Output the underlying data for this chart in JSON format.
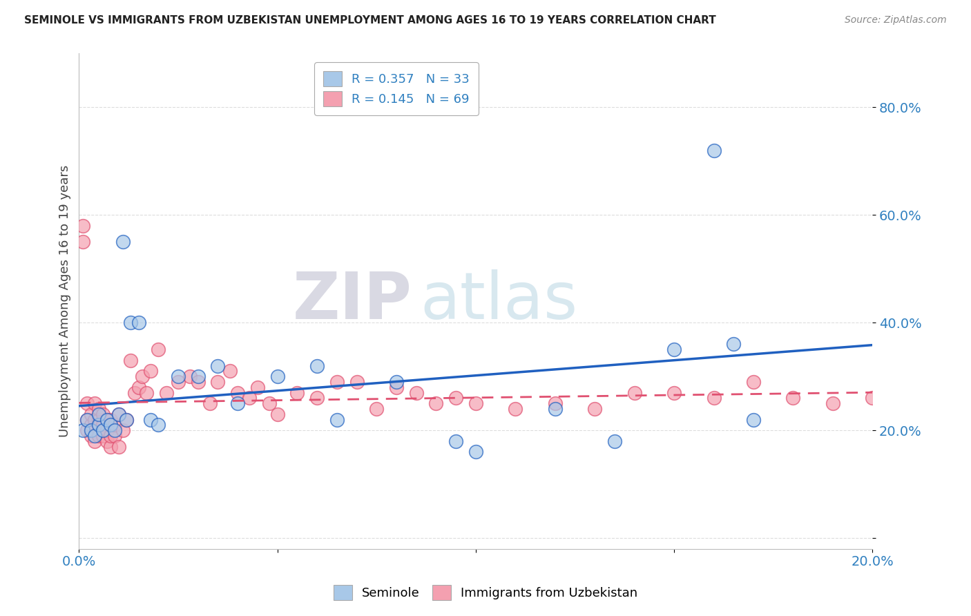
{
  "title": "SEMINOLE VS IMMIGRANTS FROM UZBEKISTAN UNEMPLOYMENT AMONG AGES 16 TO 19 YEARS CORRELATION CHART",
  "source": "Source: ZipAtlas.com",
  "ylabel": "Unemployment Among Ages 16 to 19 years",
  "xlim": [
    0.0,
    0.2
  ],
  "ylim": [
    -0.02,
    0.9
  ],
  "xticks": [
    0.0,
    0.05,
    0.1,
    0.15,
    0.2
  ],
  "xtick_labels": [
    "0.0%",
    "",
    "",
    "",
    "20.0%"
  ],
  "yticks": [
    0.0,
    0.2,
    0.4,
    0.6,
    0.8
  ],
  "ytick_labels": [
    "",
    "20.0%",
    "40.0%",
    "60.0%",
    "80.0%"
  ],
  "seminole_color": "#a8c8e8",
  "uzbek_color": "#f4a0b0",
  "seminole_line_color": "#2060c0",
  "uzbek_line_color": "#e05070",
  "R_seminole": 0.357,
  "N_seminole": 33,
  "R_uzbek": 0.145,
  "N_uzbek": 69,
  "watermark_zip": "ZIP",
  "watermark_atlas": "atlas",
  "background_color": "#ffffff",
  "grid_color": "#dddddd",
  "seminole_x": [
    0.001,
    0.002,
    0.003,
    0.004,
    0.005,
    0.005,
    0.006,
    0.007,
    0.008,
    0.009,
    0.01,
    0.011,
    0.012,
    0.013,
    0.015,
    0.018,
    0.02,
    0.025,
    0.03,
    0.035,
    0.04,
    0.05,
    0.06,
    0.065,
    0.08,
    0.095,
    0.1,
    0.12,
    0.135,
    0.15,
    0.16,
    0.165,
    0.17
  ],
  "seminole_y": [
    0.2,
    0.22,
    0.2,
    0.19,
    0.21,
    0.23,
    0.2,
    0.22,
    0.21,
    0.2,
    0.23,
    0.55,
    0.22,
    0.4,
    0.4,
    0.22,
    0.21,
    0.3,
    0.3,
    0.32,
    0.25,
    0.3,
    0.32,
    0.22,
    0.29,
    0.18,
    0.16,
    0.24,
    0.18,
    0.35,
    0.72,
    0.36,
    0.22
  ],
  "uzbek_x": [
    0.001,
    0.001,
    0.002,
    0.002,
    0.002,
    0.003,
    0.003,
    0.003,
    0.004,
    0.004,
    0.004,
    0.005,
    0.005,
    0.005,
    0.005,
    0.006,
    0.006,
    0.006,
    0.007,
    0.007,
    0.007,
    0.008,
    0.008,
    0.008,
    0.009,
    0.009,
    0.01,
    0.01,
    0.011,
    0.012,
    0.013,
    0.014,
    0.015,
    0.016,
    0.017,
    0.018,
    0.02,
    0.022,
    0.025,
    0.028,
    0.03,
    0.033,
    0.035,
    0.038,
    0.04,
    0.043,
    0.045,
    0.048,
    0.05,
    0.055,
    0.06,
    0.065,
    0.07,
    0.075,
    0.08,
    0.085,
    0.09,
    0.095,
    0.1,
    0.11,
    0.12,
    0.13,
    0.14,
    0.15,
    0.16,
    0.17,
    0.18,
    0.19,
    0.2
  ],
  "uzbek_y": [
    0.55,
    0.58,
    0.2,
    0.22,
    0.25,
    0.19,
    0.21,
    0.23,
    0.18,
    0.22,
    0.25,
    0.19,
    0.21,
    0.22,
    0.24,
    0.19,
    0.21,
    0.23,
    0.18,
    0.2,
    0.22,
    0.17,
    0.19,
    0.22,
    0.19,
    0.21,
    0.17,
    0.23,
    0.2,
    0.22,
    0.33,
    0.27,
    0.28,
    0.3,
    0.27,
    0.31,
    0.35,
    0.27,
    0.29,
    0.3,
    0.29,
    0.25,
    0.29,
    0.31,
    0.27,
    0.26,
    0.28,
    0.25,
    0.23,
    0.27,
    0.26,
    0.29,
    0.29,
    0.24,
    0.28,
    0.27,
    0.25,
    0.26,
    0.25,
    0.24,
    0.25,
    0.24,
    0.27,
    0.27,
    0.26,
    0.29,
    0.26,
    0.25,
    0.26
  ]
}
